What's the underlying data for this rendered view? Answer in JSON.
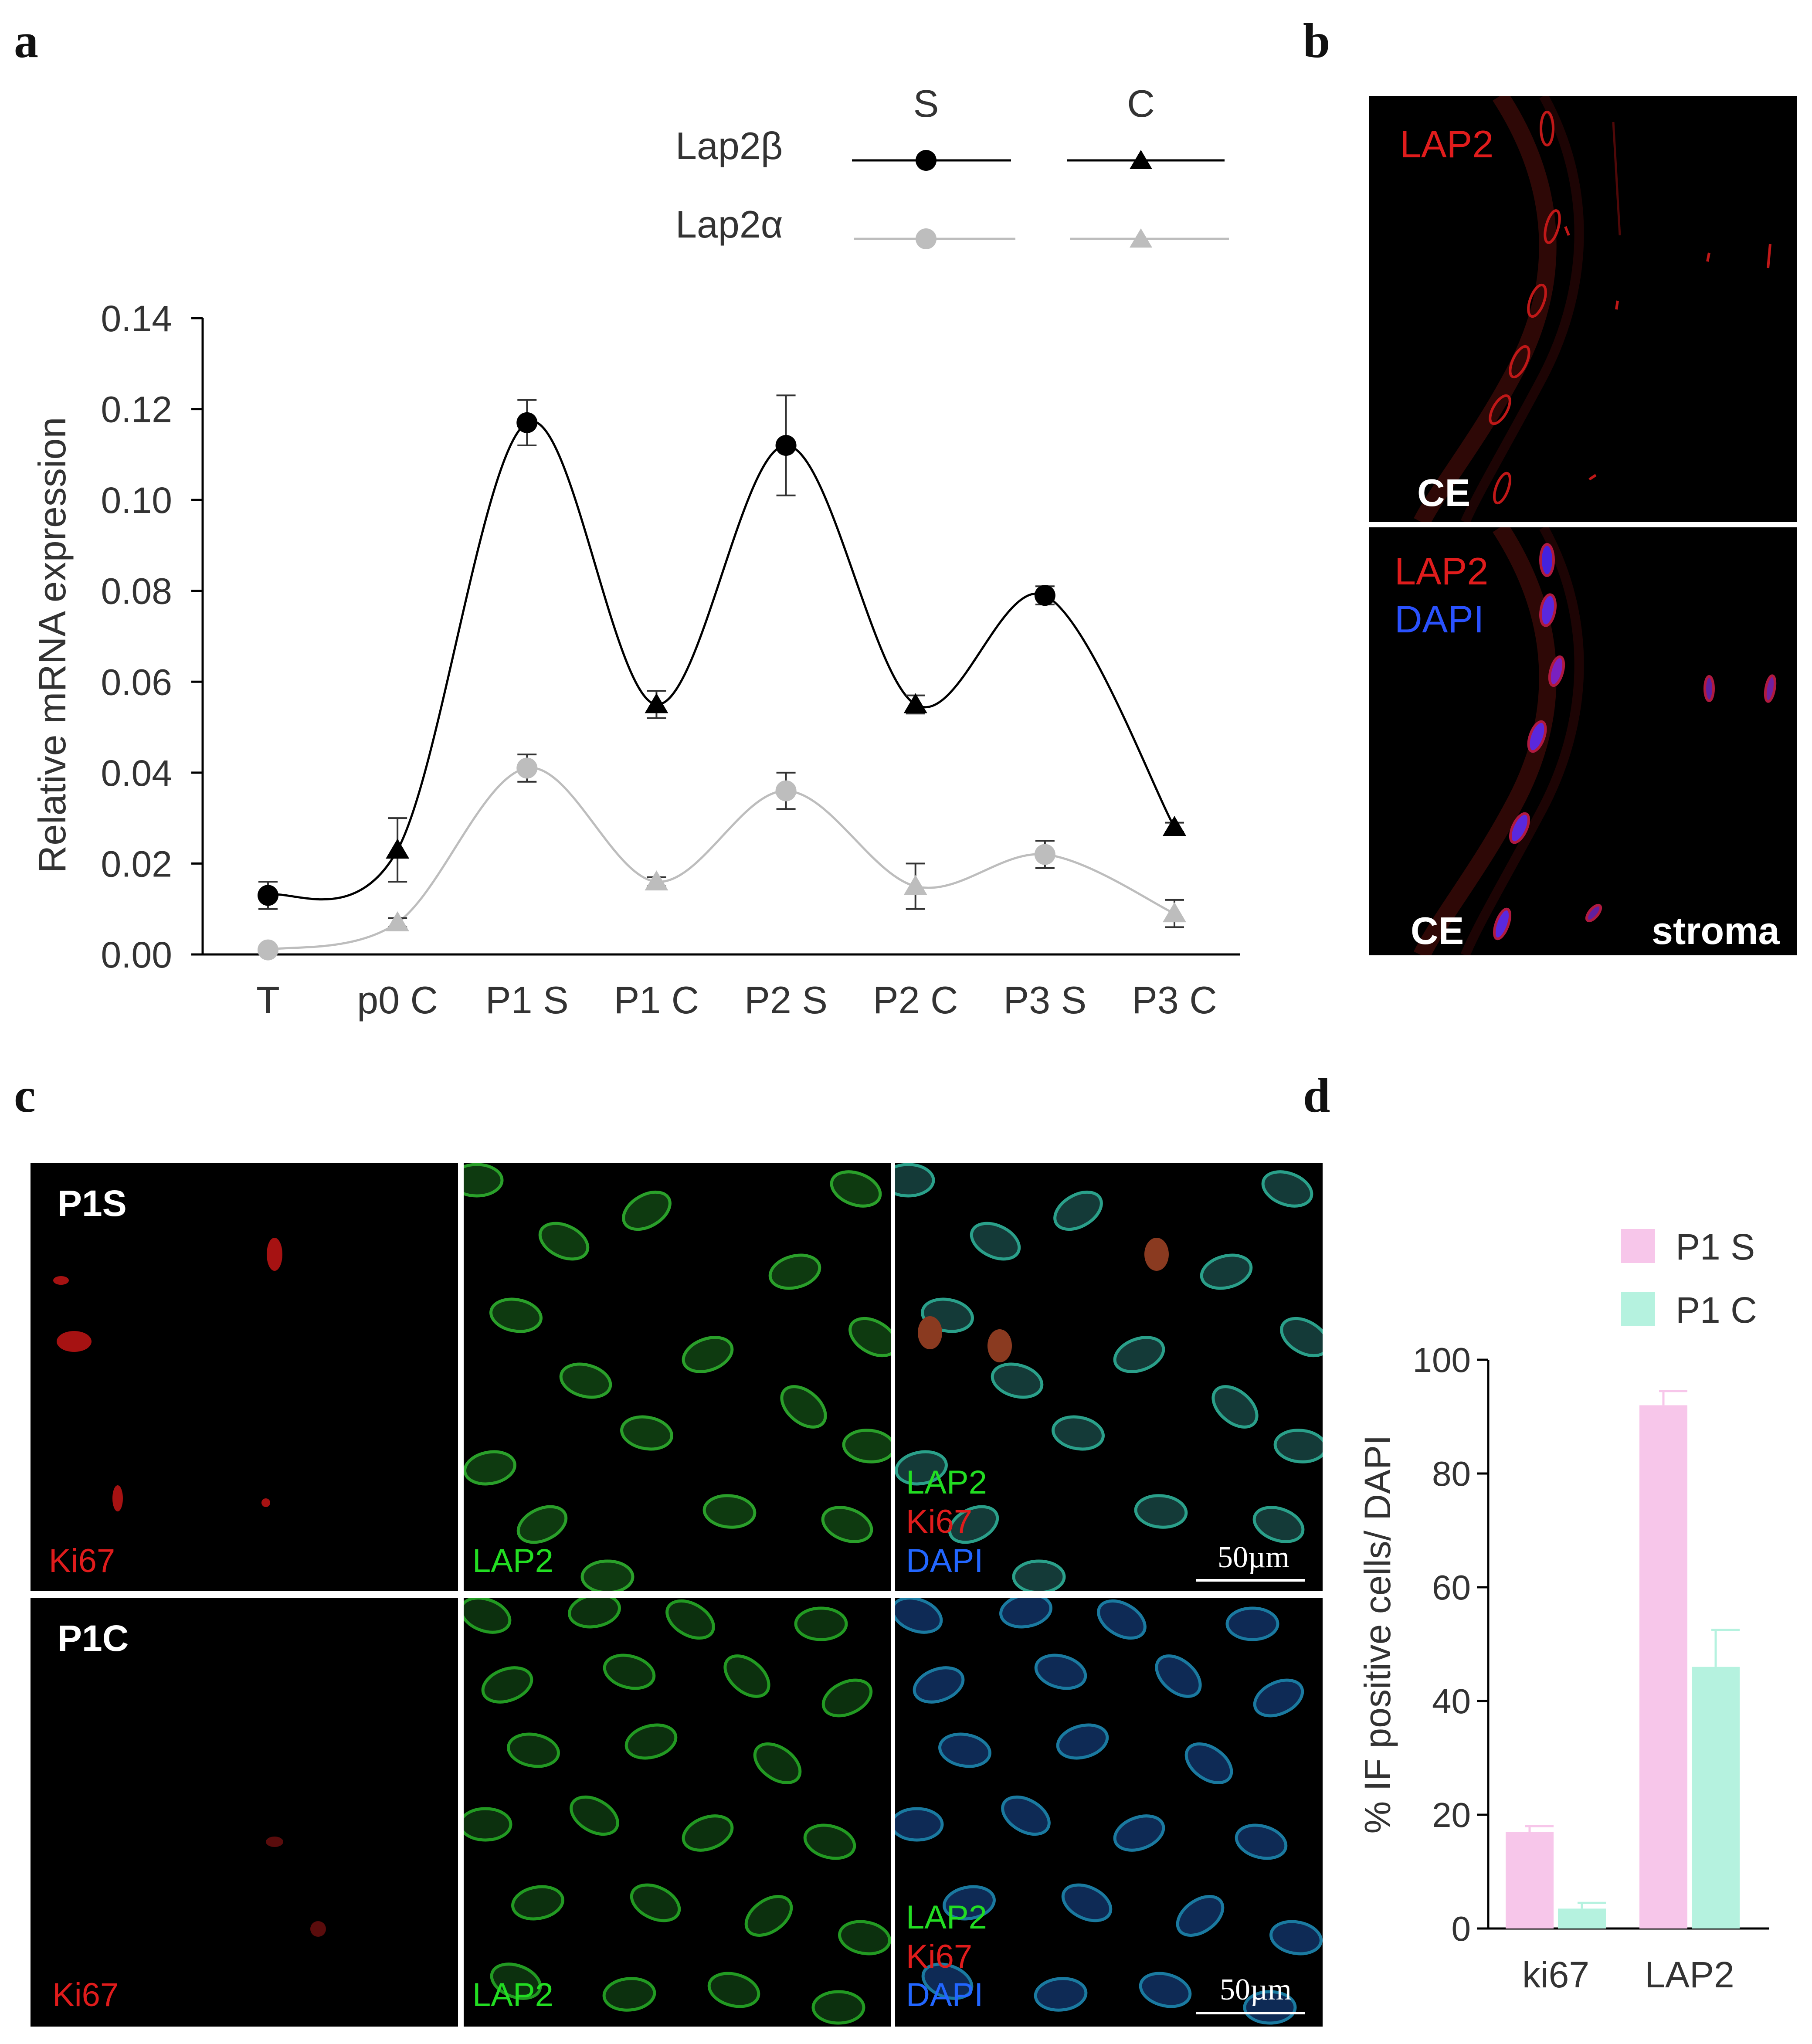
{
  "panel_labels": {
    "a": "a",
    "b": "b",
    "c": "c",
    "d": "d"
  },
  "chart_data": [
    {
      "type": "line",
      "panel": "a",
      "xlabel": "",
      "ylabel": "Relative mRNA expression",
      "ylim": [
        0,
        0.14
      ],
      "yticks": [
        "0.00",
        "0.02",
        "0.04",
        "0.06",
        "0.08",
        "0.10",
        "0.12",
        "0.14"
      ],
      "categories": [
        "T",
        "p0 C",
        "P1 S",
        "P1 C",
        "P2 S",
        "P2 C",
        "P3 S",
        "P3 C"
      ],
      "legend": {
        "col_headers": [
          "S",
          "C"
        ],
        "row_labels": [
          "Lap2β",
          "Lap2α"
        ],
        "placement": "top"
      },
      "marker_shapes": [
        "circle",
        "triangle",
        "circle",
        "triangle",
        "circle",
        "triangle",
        "circle",
        "triangle"
      ],
      "series": [
        {
          "name": "Lap2β",
          "color": "#000000",
          "values": [
            0.013,
            0.023,
            0.117,
            0.055,
            0.112,
            0.055,
            0.079,
            0.028
          ],
          "errors": [
            0.003,
            0.007,
            0.005,
            0.003,
            0.011,
            0.002,
            0.002,
            0.001
          ]
        },
        {
          "name": "Lap2α",
          "color": "#bdbdbd",
          "values": [
            0.001,
            0.007,
            0.041,
            0.016,
            0.036,
            0.015,
            0.022,
            0.009
          ],
          "errors": [
            0.0,
            0.001,
            0.003,
            0.001,
            0.004,
            0.005,
            0.003,
            0.003
          ]
        }
      ]
    },
    {
      "type": "bar",
      "panel": "d",
      "xlabel": "",
      "ylabel": "% IF positive cells/ DAPI",
      "ylim": [
        0,
        100
      ],
      "yticks": [
        "0",
        "20",
        "40",
        "60",
        "80",
        "100"
      ],
      "categories": [
        "ki67",
        "LAP2"
      ],
      "legend_placement": "top-right",
      "series": [
        {
          "name": "P1 S",
          "color": "#f7c6ea",
          "values": [
            17,
            92
          ],
          "errors": [
            1,
            2.5
          ]
        },
        {
          "name": "P1 C",
          "color": "#b5f2df",
          "values": [
            3.5,
            46
          ],
          "errors": [
            1,
            6.5
          ]
        }
      ]
    }
  ],
  "panel_b": {
    "top": {
      "labels": [
        "LAP2"
      ],
      "bottom_left": "CE"
    },
    "bottom": {
      "labels": [
        "LAP2",
        "DAPI"
      ],
      "bottom_left": "CE",
      "bottom_right": "stroma"
    }
  },
  "panel_c": {
    "rows": [
      {
        "name": "P1S",
        "ch1": "Ki67",
        "ch2": "LAP2",
        "merge": [
          "LAP2",
          "Ki67",
          "DAPI"
        ],
        "scale": "50µm"
      },
      {
        "name": "P1C",
        "ch1": "Ki67",
        "ch2": "LAP2",
        "merge": [
          "LAP2",
          "Ki67",
          "DAPI"
        ],
        "scale": "50µm"
      }
    ]
  },
  "colors": {
    "red": "#ff2020",
    "green": "#22dd22",
    "blue": "#3366ff"
  }
}
